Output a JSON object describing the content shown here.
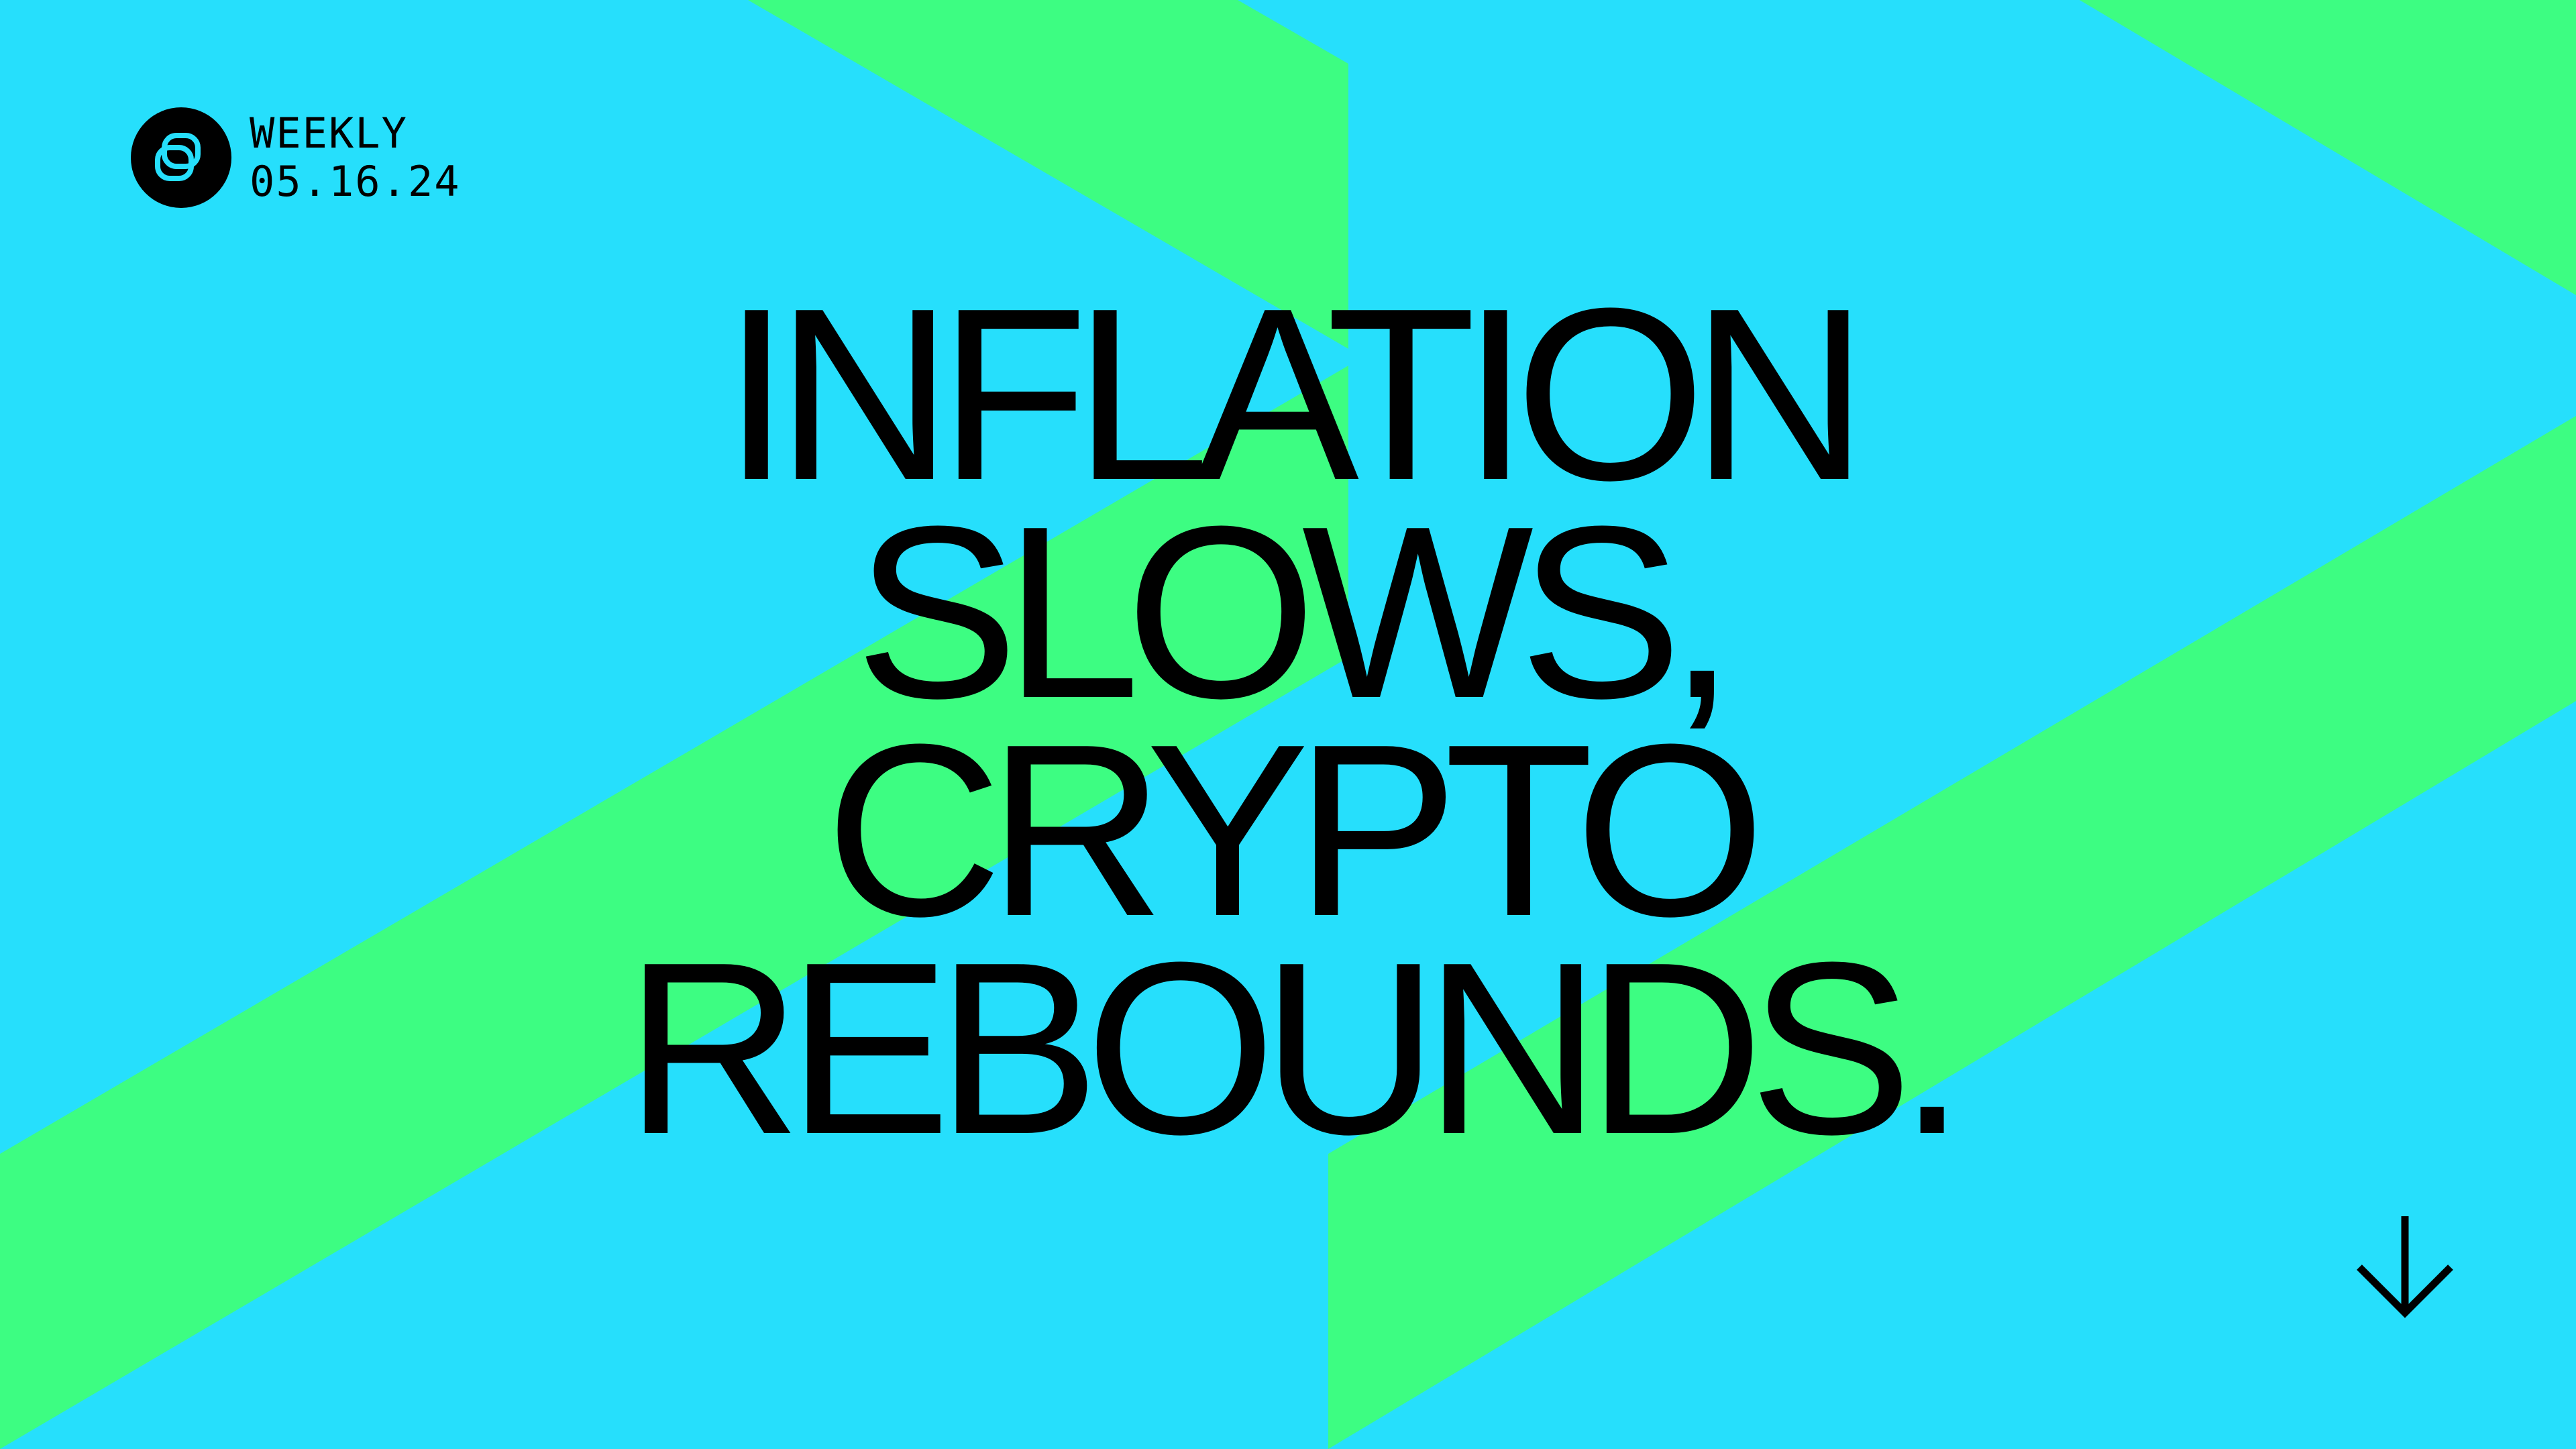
{
  "header": {
    "label": "WEEKLY",
    "date": "05.16.24",
    "logo_icon": "gemini-logo-icon"
  },
  "headline": {
    "lines": [
      "INFLATION",
      "SLOWS,",
      "CRYPTO",
      "REBOUNDS."
    ]
  },
  "scroll": {
    "icon": "arrow-down-icon"
  },
  "colors": {
    "background": "#26dffc",
    "accent": "#3dfd82",
    "text": "#000000"
  }
}
